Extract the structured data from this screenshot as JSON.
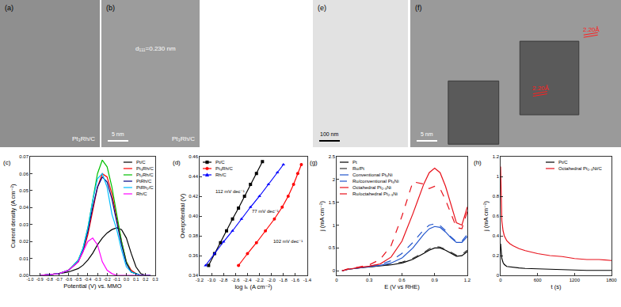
{
  "chart_data": [
    {
      "type": "micrograph",
      "label": "(a)",
      "caption": "Pt₃Rh/C"
    },
    {
      "type": "micrograph",
      "label": "(b)",
      "caption": "Pt₃Rh/C",
      "scale_bar": "5 nm",
      "annotations": [
        "d₁₁₁=0.230 nm"
      ]
    },
    {
      "type": "line",
      "label": "(c)",
      "x_label": "Potential (V) vs. MMO",
      "y_label": "Current density (A cm⁻²)",
      "xlim": [
        -1.0,
        0.3
      ],
      "xticks": [
        {
          "value": -1.0,
          "label": "-1.0"
        },
        -0.9,
        -0.8,
        -0.7,
        -0.6,
        -0.5,
        -0.4,
        -0.3,
        -0.2,
        -0.1,
        {
          "value": 0,
          "label": "0.0"
        },
        0.1,
        0.2,
        0.3
      ],
      "ylim": [
        0,
        0.07
      ],
      "yticks": [
        {
          "value": 0,
          "label": "0.00"
        },
        {
          "value": 0.01,
          "label": "0.01"
        },
        {
          "value": 0.02,
          "label": "0.02"
        },
        {
          "value": 0.03,
          "label": "0.03"
        },
        {
          "value": 0.04,
          "label": "0.04"
        },
        {
          "value": 0.05,
          "label": "0.05"
        },
        {
          "value": 0.06,
          "label": "0.06"
        },
        {
          "value": 0.07,
          "label": "0.07"
        }
      ],
      "grid": false,
      "legend": "upper right",
      "x": [
        -0.9,
        -0.8,
        -0.7,
        -0.6,
        -0.5,
        -0.45,
        -0.4,
        -0.35,
        -0.3,
        -0.25,
        -0.2,
        -0.15,
        -0.1,
        -0.05,
        0,
        0.05,
        0.1,
        0.15,
        0.2,
        0.25
      ],
      "series": [
        {
          "name": "Pt/C",
          "color": "#000000",
          "values": [
            0,
            0.0005,
            0.001,
            0.002,
            0.004,
            0.006,
            0.009,
            0.013,
            0.018,
            0.022,
            0.025,
            0.027,
            0.028,
            0.027,
            0.022,
            0.013,
            0.005,
            0.001,
            0,
            0
          ]
        },
        {
          "name": "Pt₃Rh/C",
          "color": "#ff0000",
          "values": [
            0,
            0.0005,
            0.001,
            0.003,
            0.008,
            0.014,
            0.024,
            0.038,
            0.052,
            0.06,
            0.058,
            0.048,
            0.034,
            0.02,
            0.008,
            0.003,
            0.001,
            0,
            0,
            0
          ]
        },
        {
          "name": "Pt₂Rh/C",
          "color": "#00c000",
          "values": [
            0,
            0.0005,
            0.001,
            0.003,
            0.009,
            0.016,
            0.028,
            0.044,
            0.06,
            0.068,
            0.064,
            0.052,
            0.036,
            0.02,
            0.008,
            0.002,
            0.001,
            0,
            0,
            0
          ]
        },
        {
          "name": "PtRh/C",
          "color": "#000080",
          "values": [
            0,
            0.0005,
            0.001,
            0.003,
            0.008,
            0.015,
            0.026,
            0.04,
            0.052,
            0.058,
            0.055,
            0.045,
            0.031,
            0.018,
            0.007,
            0.002,
            0.001,
            0,
            0,
            0
          ]
        },
        {
          "name": "PtRh₂/C",
          "color": "#00bfff",
          "values": [
            0,
            0.0005,
            0.001,
            0.003,
            0.009,
            0.016,
            0.028,
            0.044,
            0.057,
            0.06,
            0.052,
            0.036,
            0.027,
            0.015,
            0.005,
            0.002,
            0.001,
            0,
            0,
            0
          ]
        },
        {
          "name": "Rh/C",
          "color": "#ff00ff",
          "values": [
            0,
            0.0005,
            0.001,
            0.003,
            0.008,
            0.014,
            0.02,
            0.022,
            0.018,
            0.008,
            0.003,
            0.001,
            0,
            0,
            0,
            0,
            0,
            0,
            0,
            0
          ]
        }
      ]
    },
    {
      "type": "line",
      "label": "(d)",
      "x_label": "log iₖ (A cm⁻²)",
      "y_label": "Overpotential (V)",
      "xlim": [
        -3.2,
        -1.4
      ],
      "xticks": [
        -3.2,
        {
          "value": -3.0,
          "label": "-3.0"
        },
        -2.8,
        -2.6,
        -2.4,
        -2.2,
        {
          "value": -2.0,
          "label": "-2.0"
        },
        -1.8,
        -1.6,
        -1.4
      ],
      "ylim": [
        0.34,
        0.46
      ],
      "yticks": [
        0.34,
        0.36,
        0.38,
        {
          "value": 0.4,
          "label": "0.40"
        },
        0.42,
        0.44,
        0.46
      ],
      "grid": false,
      "legend": "upper left",
      "annotations": [
        "112 mV dec⁻¹",
        "77 mV dec⁻¹",
        "102 mV dec⁻¹"
      ],
      "series": [
        {
          "name": "Pt/C",
          "color": "#000000",
          "marker": "square",
          "x": [
            -3.05,
            -2.95,
            -2.85,
            -2.75,
            -2.65,
            -2.55,
            -2.45,
            -2.35,
            -2.25,
            -2.15
          ],
          "values": [
            0.35,
            0.362,
            0.373,
            0.385,
            0.397,
            0.408,
            0.42,
            0.432,
            0.443,
            0.455
          ]
        },
        {
          "name": "Pt₃Rh/C",
          "color": "#ff0000",
          "marker": "circle",
          "x": [
            -2.55,
            -2.4,
            -2.25,
            -2.1,
            -1.95,
            -1.82,
            -1.72,
            -1.63,
            -1.56,
            -1.5
          ],
          "values": [
            0.35,
            0.362,
            0.373,
            0.385,
            0.397,
            0.409,
            0.42,
            0.432,
            0.443,
            0.452
          ]
        },
        {
          "name": "Rh/C",
          "color": "#0000ff",
          "marker": "triangle",
          "x": [
            -3.1,
            -2.95,
            -2.8,
            -2.65,
            -2.5,
            -2.35,
            -2.2,
            -2.05,
            -1.9,
            -1.8
          ],
          "values": [
            0.35,
            0.362,
            0.374,
            0.385,
            0.397,
            0.409,
            0.42,
            0.432,
            0.444,
            0.452
          ]
        }
      ]
    },
    {
      "type": "micrograph",
      "label": "(e)",
      "scale_bar": "100 nm"
    },
    {
      "type": "micrograph",
      "label": "(f)",
      "scale_bar": "5 nm",
      "annotations": [
        "2.20Å",
        "2.20Å"
      ],
      "color": "#ff2020"
    },
    {
      "type": "line",
      "label": "(g)",
      "x_label": "E (V vs RHE)",
      "y_label": "j (mA cm⁻²)",
      "xlim": [
        0,
        1.2
      ],
      "xticks": [
        0,
        0.3,
        0.6,
        0.9,
        1.2
      ],
      "ylim": [
        -0.1,
        2.5
      ],
      "yticks": [
        0,
        0.5,
        1,
        1.5,
        2,
        2.5
      ],
      "grid": false,
      "legend": "upper left",
      "x": [
        0.05,
        0.1,
        0.2,
        0.3,
        0.4,
        0.5,
        0.6,
        0.7,
        0.8,
        0.85,
        0.9,
        0.95,
        1.0,
        1.05,
        1.1,
        1.15,
        1.2
      ],
      "series": [
        {
          "name": "Pt",
          "color": "#000000",
          "line_style": "solid",
          "values": [
            0,
            0.03,
            0.06,
            0.08,
            0.1,
            0.13,
            0.17,
            0.25,
            0.38,
            0.45,
            0.5,
            0.5,
            0.45,
            0.38,
            0.32,
            0.33,
            0.42
          ]
        },
        {
          "name": "Ru/Pt",
          "color": "#333333",
          "line_style": "dashed",
          "values": [
            0,
            0.03,
            0.06,
            0.09,
            0.11,
            0.14,
            0.19,
            0.27,
            0.4,
            0.48,
            0.53,
            0.52,
            0.47,
            0.4,
            0.34,
            0.36,
            0.45
          ]
        },
        {
          "name": "Conventional Pt₃Ni",
          "color": "#2255cc",
          "line_style": "solid",
          "values": [
            0,
            0.03,
            0.06,
            0.09,
            0.12,
            0.17,
            0.28,
            0.5,
            0.8,
            0.92,
            0.97,
            0.95,
            0.85,
            0.72,
            0.62,
            0.62,
            0.75
          ]
        },
        {
          "name": "Ru/conventional Pt₃Ni",
          "color": "#2255cc",
          "line_style": "dashed",
          "values": [
            0,
            0.03,
            0.07,
            0.1,
            0.14,
            0.22,
            0.38,
            0.62,
            0.9,
            1.0,
            1.03,
            0.99,
            0.88,
            0.74,
            0.64,
            0.65,
            0.8
          ]
        },
        {
          "name": "Octahedral Pt₂.₃Ni",
          "color": "#e8101a",
          "line_style": "solid",
          "values": [
            0,
            0.03,
            0.07,
            0.1,
            0.15,
            0.3,
            0.65,
            1.25,
            1.9,
            2.15,
            2.25,
            2.15,
            1.85,
            1.45,
            1.05,
            1.0,
            1.4
          ]
        },
        {
          "name": "Ru/octahedral Pt₂.₃Ni",
          "color": "#e8101a",
          "line_style": "dashed",
          "values": [
            0,
            0.04,
            0.08,
            0.13,
            0.25,
            0.55,
            1.2,
            1.95,
            1.9,
            1.8,
            1.85,
            1.8,
            1.55,
            1.25,
            0.95,
            0.92,
            1.3
          ]
        }
      ]
    },
    {
      "type": "line",
      "label": "(h)",
      "x_label": "t (s)",
      "y_label": "j (mA cm⁻²)",
      "xlim": [
        0,
        1800
      ],
      "xticks": [
        0,
        600,
        1200,
        1800
      ],
      "ylim": [
        0,
        1.2
      ],
      "yticks": [
        0,
        0.2,
        0.4,
        0.6,
        0.8,
        1,
        1.2
      ],
      "grid": false,
      "legend": "upper right",
      "x": [
        0,
        10,
        20,
        40,
        60,
        100,
        150,
        200,
        300,
        400,
        600,
        800,
        1000,
        1200,
        1400,
        1600,
        1800
      ],
      "series": [
        {
          "name": "Pt/C",
          "color": "#000000",
          "values": [
            0.32,
            0.22,
            0.17,
            0.13,
            0.11,
            0.09,
            0.085,
            0.08,
            0.075,
            0.07,
            0.065,
            0.06,
            0.055,
            0.055,
            0.05,
            0.05,
            0.05
          ]
        },
        {
          "name": "Octahedral Pt₂.₃Ni/C",
          "color": "#e8101a",
          "values": [
            1.1,
            0.7,
            0.55,
            0.45,
            0.4,
            0.35,
            0.32,
            0.3,
            0.27,
            0.25,
            0.22,
            0.2,
            0.19,
            0.17,
            0.16,
            0.16,
            0.15
          ]
        }
      ]
    }
  ]
}
